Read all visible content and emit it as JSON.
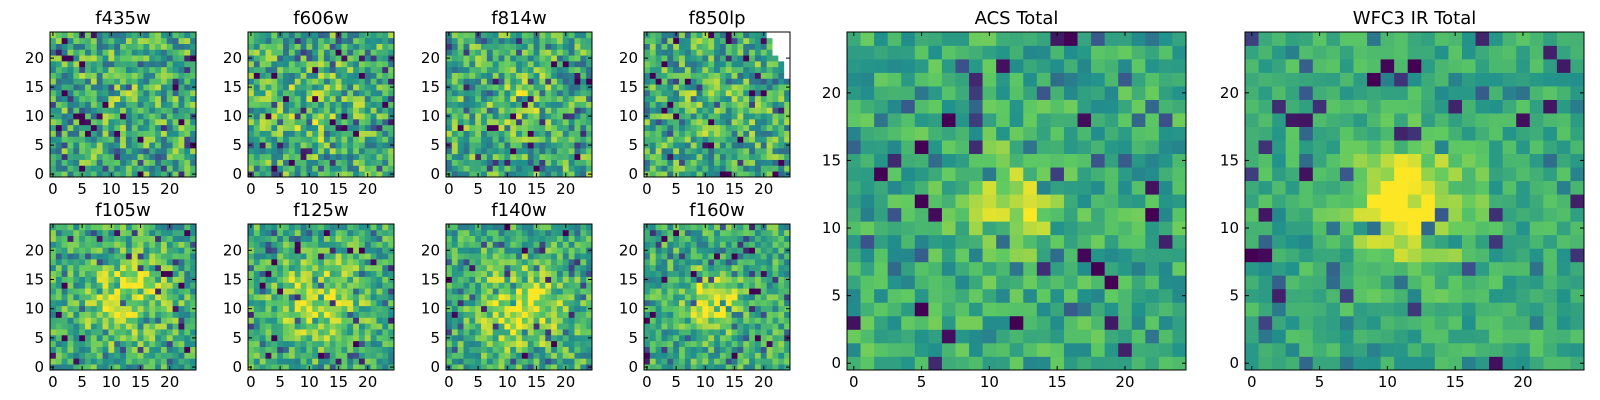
{
  "chart_data": [
    {
      "type": "heatmap",
      "title": "f435w",
      "xlim": [
        0,
        25
      ],
      "ylim": [
        0,
        25
      ],
      "xticks": [
        "0",
        "5",
        "10",
        "15",
        "20"
      ],
      "yticks": [
        "0",
        "5",
        "10",
        "15",
        "20"
      ],
      "colormap": "viridis",
      "seed": 11,
      "blob": {
        "x": 13,
        "y": 12,
        "sigma": 5,
        "amp": 0.05
      },
      "noise": 1.0,
      "clip_min": 0.0
    },
    {
      "type": "heatmap",
      "title": "f606w",
      "xlim": [
        0,
        25
      ],
      "ylim": [
        0,
        25
      ],
      "xticks": [
        "0",
        "5",
        "10",
        "15",
        "20"
      ],
      "yticks": [
        "0",
        "5",
        "10",
        "15",
        "20"
      ],
      "colormap": "viridis",
      "seed": 23,
      "blob": {
        "x": 11,
        "y": 11,
        "sigma": 5,
        "amp": 0.12
      },
      "noise": 1.0,
      "clip_min": 0.0
    },
    {
      "type": "heatmap",
      "title": "f814w",
      "xlim": [
        0,
        25
      ],
      "ylim": [
        0,
        25
      ],
      "xticks": [
        "0",
        "5",
        "10",
        "15",
        "20"
      ],
      "yticks": [
        "0",
        "5",
        "10",
        "15",
        "20"
      ],
      "colormap": "viridis",
      "seed": 37,
      "blob": {
        "x": 12,
        "y": 13,
        "sigma": 4,
        "amp": 0.12
      },
      "noise": 1.0,
      "clip_min": 0.0
    },
    {
      "type": "heatmap",
      "title": "f850lp",
      "xlim": [
        0,
        25
      ],
      "ylim": [
        0,
        25
      ],
      "xticks": [
        "0",
        "5",
        "10",
        "15",
        "20"
      ],
      "yticks": [
        "0",
        "5",
        "10",
        "15",
        "20"
      ],
      "colormap": "viridis",
      "seed": 41,
      "blob": {
        "x": 12,
        "y": 12,
        "sigma": 4,
        "amp": 0.08
      },
      "noise": 1.0,
      "clip_min": 0.0,
      "masked_cells": [
        [
          21,
          24
        ],
        [
          22,
          24
        ],
        [
          23,
          24
        ],
        [
          24,
          24
        ],
        [
          22,
          23
        ],
        [
          23,
          23
        ],
        [
          24,
          23
        ],
        [
          22,
          22
        ],
        [
          23,
          22
        ],
        [
          24,
          22
        ],
        [
          22,
          21
        ],
        [
          23,
          21
        ],
        [
          24,
          21
        ],
        [
          23,
          20
        ],
        [
          24,
          20
        ],
        [
          24,
          19
        ],
        [
          24,
          18
        ],
        [
          24,
          17
        ]
      ]
    },
    {
      "type": "heatmap",
      "title": "f105w",
      "xlim": [
        0,
        25
      ],
      "ylim": [
        0,
        25
      ],
      "xticks": [
        "0",
        "5",
        "10",
        "15",
        "20"
      ],
      "yticks": [
        "0",
        "5",
        "10",
        "15",
        "20"
      ],
      "colormap": "viridis",
      "seed": 53,
      "blob": {
        "x": 13,
        "y": 12,
        "sigma": 5,
        "amp": 0.3
      },
      "noise": 0.8,
      "clip_min": 0.0
    },
    {
      "type": "heatmap",
      "title": "f125w",
      "xlim": [
        0,
        25
      ],
      "ylim": [
        0,
        25
      ],
      "xticks": [
        "0",
        "5",
        "10",
        "15",
        "20"
      ],
      "yticks": [
        "0",
        "5",
        "10",
        "15",
        "20"
      ],
      "colormap": "viridis",
      "seed": 67,
      "blob": {
        "x": 12,
        "y": 12,
        "sigma": 5,
        "amp": 0.3
      },
      "noise": 0.8,
      "clip_min": 0.0
    },
    {
      "type": "heatmap",
      "title": "f140w",
      "xlim": [
        0,
        25
      ],
      "ylim": [
        0,
        25
      ],
      "xticks": [
        "0",
        "5",
        "10",
        "15",
        "20"
      ],
      "yticks": [
        "0",
        "5",
        "10",
        "15",
        "20"
      ],
      "colormap": "viridis",
      "seed": 79,
      "blob": {
        "x": 13,
        "y": 11,
        "sigma": 5,
        "amp": 0.3
      },
      "noise": 0.8,
      "clip_min": 0.0
    },
    {
      "type": "heatmap",
      "title": "f160w",
      "xlim": [
        0,
        25
      ],
      "ylim": [
        0,
        25
      ],
      "xticks": [
        "0",
        "5",
        "10",
        "15",
        "20"
      ],
      "yticks": [
        "0",
        "5",
        "10",
        "15",
        "20"
      ],
      "colormap": "viridis",
      "seed": 83,
      "blob": {
        "x": 12,
        "y": 12,
        "sigma": 3,
        "amp": 0.45
      },
      "noise": 0.8,
      "clip_min": 0.0
    },
    {
      "type": "heatmap",
      "title": "ACS Total",
      "xlim": [
        0,
        25
      ],
      "ylim": [
        0,
        25
      ],
      "xticks": [
        "0",
        "5",
        "10",
        "15",
        "20"
      ],
      "yticks": [
        "0",
        "5",
        "10",
        "15",
        "20"
      ],
      "colormap": "viridis",
      "seed": 97,
      "blob": {
        "x": 12,
        "y": 12,
        "sigma": 2.5,
        "amp": 0.35
      },
      "noise": 0.6,
      "clip_min": 0.0
    },
    {
      "type": "heatmap",
      "title": "WFC3 IR Total",
      "xlim": [
        0,
        25
      ],
      "ylim": [
        0,
        25
      ],
      "xticks": [
        "0",
        "5",
        "10",
        "15",
        "20"
      ],
      "yticks": [
        "0",
        "5",
        "10",
        "15",
        "20"
      ],
      "colormap": "viridis",
      "seed": 101,
      "blob": {
        "x": 12,
        "y": 12,
        "sigma": 3,
        "amp": 0.5
      },
      "noise": 0.45,
      "clip_min": 0.0
    }
  ]
}
